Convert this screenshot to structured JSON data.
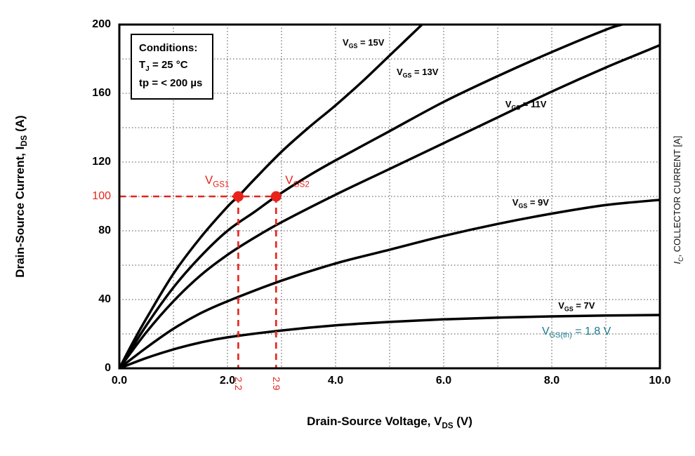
{
  "chart_data": {
    "type": "line",
    "title": "",
    "xlabel_parts": {
      "pre": "Drain-Source Voltage, V",
      "sub": "DS",
      "post": " (V)"
    },
    "ylabel_parts": {
      "pre": "Drain-Source Current, I",
      "sub": "DS",
      "post": " (A)"
    },
    "right_axis_parts": {
      "pre": "I",
      "sub": "C",
      "post": ", COLLECTOR CURRENT [A]"
    },
    "xlim": [
      0,
      10
    ],
    "ylim": [
      0,
      200
    ],
    "x_tick_values": [
      0,
      2,
      4,
      6,
      8,
      10
    ],
    "x_tick_labels": [
      "0.0",
      "2.0",
      "4.0",
      "6.0",
      "8.0",
      "10.0"
    ],
    "y_tick_values": [
      0,
      40,
      80,
      120,
      160,
      200
    ],
    "y_tick_labels": [
      "0",
      "40",
      "80",
      "120",
      "160",
      "200"
    ],
    "x_grid_step": 1,
    "y_grid_step": 20,
    "grid": "on",
    "conditions": {
      "title": "Conditions:",
      "tj_parts": {
        "pre": "T",
        "sub": "J",
        "post": " = 25 °C"
      },
      "tp": "tp = < 200 µs"
    },
    "series": [
      {
        "name": "VGS-15V",
        "label_parts": {
          "pre": "V",
          "sub": "GS",
          "post": " = 15V"
        },
        "label_x": 4.13,
        "label_y": 189,
        "points": [
          [
            0,
            0
          ],
          [
            0.25,
            15
          ],
          [
            0.5,
            29
          ],
          [
            1,
            55
          ],
          [
            1.5,
            76
          ],
          [
            2,
            94
          ],
          [
            2.2,
            100
          ],
          [
            2.5,
            110
          ],
          [
            3,
            126
          ],
          [
            3.5,
            140
          ],
          [
            4,
            153
          ],
          [
            4.5,
            167
          ],
          [
            5,
            182
          ],
          [
            5.3,
            191
          ],
          [
            5.6,
            200
          ]
        ]
      },
      {
        "name": "VGS-13V",
        "label_parts": {
          "pre": "V",
          "sub": "GS",
          "post": " = 13V"
        },
        "label_x": 5.13,
        "label_y": 172,
        "points": [
          [
            0,
            0
          ],
          [
            0.5,
            25
          ],
          [
            1,
            47
          ],
          [
            1.5,
            65
          ],
          [
            2,
            80
          ],
          [
            2.5,
            91
          ],
          [
            2.9,
            100
          ],
          [
            3.5,
            112
          ],
          [
            4,
            121
          ],
          [
            5,
            138
          ],
          [
            6,
            155
          ],
          [
            7,
            170
          ],
          [
            8,
            184
          ],
          [
            9,
            197
          ],
          [
            9.3,
            200
          ]
        ]
      },
      {
        "name": "VGS-11V",
        "label_parts": {
          "pre": "V",
          "sub": "GS",
          "post": " = 11V"
        },
        "label_x": 7.14,
        "label_y": 153,
        "points": [
          [
            0,
            0
          ],
          [
            0.5,
            21
          ],
          [
            1,
            39
          ],
          [
            1.5,
            54
          ],
          [
            2,
            66
          ],
          [
            2.5,
            76
          ],
          [
            3,
            85
          ],
          [
            4,
            101
          ],
          [
            5,
            116
          ],
          [
            6,
            131
          ],
          [
            7,
            146
          ],
          [
            8,
            161
          ],
          [
            9,
            175
          ],
          [
            10,
            188
          ]
        ]
      },
      {
        "name": "VGS-9V",
        "label_parts": {
          "pre": "V",
          "sub": "GS",
          "post": " = 9V"
        },
        "label_x": 7.27,
        "label_y": 96,
        "points": [
          [
            0,
            0
          ],
          [
            0.5,
            12
          ],
          [
            1,
            23
          ],
          [
            1.5,
            32
          ],
          [
            2,
            39
          ],
          [
            3,
            51
          ],
          [
            4,
            61
          ],
          [
            5,
            69
          ],
          [
            6,
            77
          ],
          [
            7,
            84
          ],
          [
            8,
            90
          ],
          [
            9,
            95
          ],
          [
            10,
            98
          ]
        ]
      },
      {
        "name": "VGS-7V",
        "label_parts": {
          "pre": "V",
          "sub": "GS",
          "post": " = 7V"
        },
        "label_x": 8.12,
        "label_y": 36,
        "points": [
          [
            0,
            0
          ],
          [
            0.5,
            6
          ],
          [
            1,
            11
          ],
          [
            1.5,
            15
          ],
          [
            2,
            18
          ],
          [
            3,
            22
          ],
          [
            4,
            25
          ],
          [
            5,
            27
          ],
          [
            6,
            28.5
          ],
          [
            7,
            29.5
          ],
          [
            8,
            30.2
          ],
          [
            9,
            30.7
          ],
          [
            10,
            31
          ]
        ]
      }
    ],
    "annotations": {
      "points": [
        {
          "x": 2.2,
          "y": 100,
          "label_parts": {
            "pre": "V",
            "sub": "GS1"
          }
        },
        {
          "x": 2.9,
          "y": 100,
          "label_parts": {
            "pre": "V",
            "sub": "GS2"
          }
        }
      ],
      "hline": {
        "y": 100,
        "x0": 0,
        "x1": 2.9
      },
      "vlines": [
        {
          "x": 2.2
        },
        {
          "x": 2.9
        }
      ],
      "y_value_label": "100",
      "x_value_labels": [
        "2.2",
        "2.9"
      ],
      "threshold_parts": {
        "pre": "V",
        "sub": "GS(th)",
        "post": " = 1.8 V"
      }
    },
    "colors": {
      "curve": "#000000",
      "grid": "#4a4a4a",
      "annotation": "#e8231b",
      "threshold": "#1b7a8e",
      "background": "#ffffff"
    }
  }
}
